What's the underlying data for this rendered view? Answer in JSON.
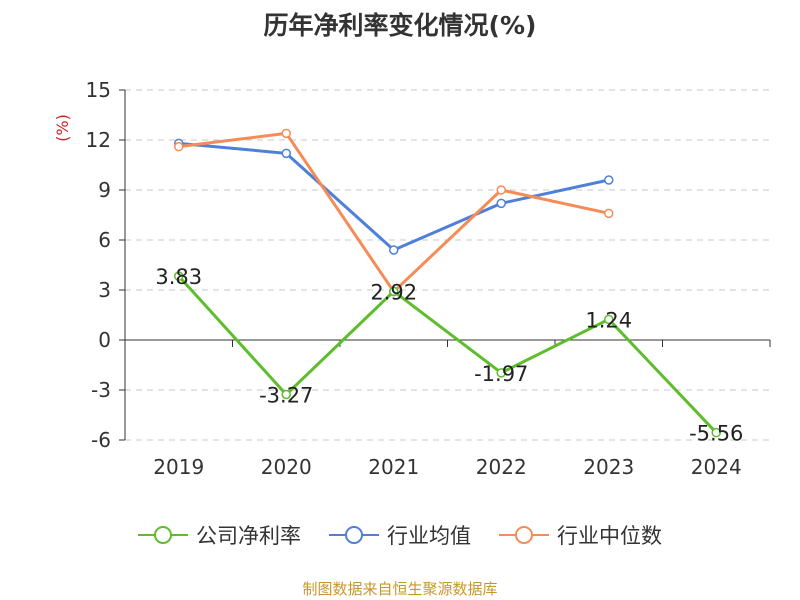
{
  "chart_data": {
    "type": "line",
    "title": "历年净利率变化情况(%)",
    "ylabel": "(%)",
    "xlabel": "",
    "categories": [
      "2019",
      "2020",
      "2021",
      "2022",
      "2023",
      "2024"
    ],
    "ylim": [
      -6,
      15
    ],
    "yticks": [
      15,
      12,
      9,
      6,
      3,
      0,
      -3,
      -6
    ],
    "grid": true,
    "legend_position": "bottom",
    "series": [
      {
        "name": "公司净利率",
        "color": "#5dbd2c",
        "values": [
          3.83,
          -3.27,
          2.92,
          -1.97,
          1.24,
          -5.56
        ],
        "show_labels": true,
        "labels": [
          "3.83",
          "-3.27",
          "2.92",
          "-1.97",
          "1.24",
          "-5.56"
        ]
      },
      {
        "name": "行业均值",
        "color": "#4e80d9",
        "values": [
          11.8,
          11.2,
          5.4,
          8.2,
          9.6,
          null
        ],
        "show_labels": false
      },
      {
        "name": "行业中位数",
        "color": "#f58c58",
        "values": [
          11.6,
          12.4,
          2.9,
          9.0,
          7.6,
          null
        ],
        "show_labels": false
      }
    ]
  },
  "source": "制图数据来自恒生聚源数据库"
}
